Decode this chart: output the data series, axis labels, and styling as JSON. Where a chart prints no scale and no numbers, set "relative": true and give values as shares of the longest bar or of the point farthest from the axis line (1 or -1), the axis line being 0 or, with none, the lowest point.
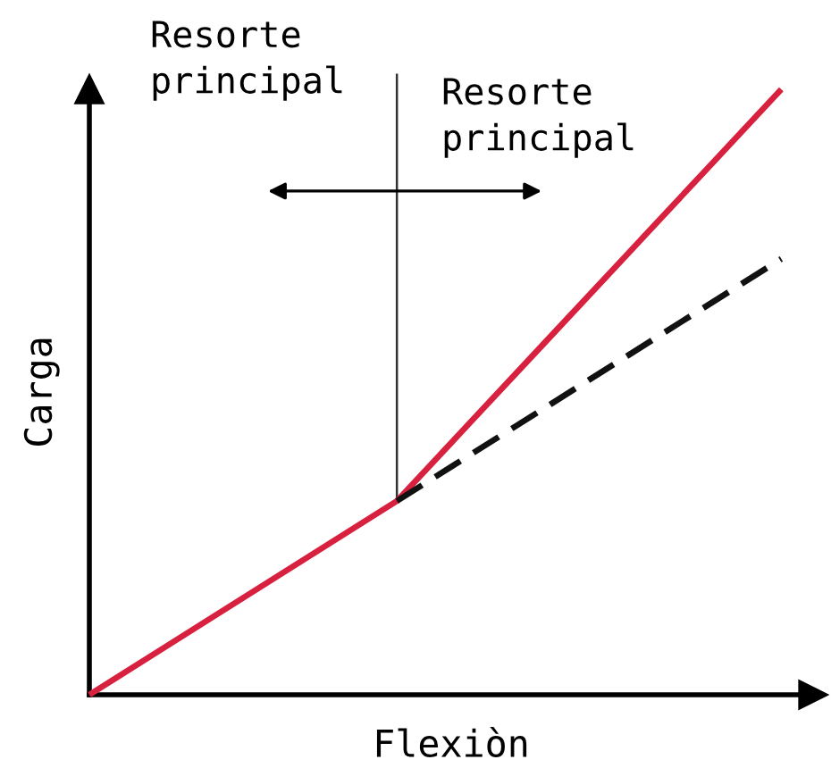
{
  "chart_data": {
    "type": "line",
    "relative": true,
    "xlabel": "Flexiòn",
    "ylabel": "Carga",
    "annotations": [
      "Resorte\nprincipal",
      "Resorte\nprincipal"
    ],
    "categories": [
      null,
      null,
      null,
      null,
      null,
      null,
      null,
      null,
      null,
      null
    ],
    "series": [
      {
        "color": "#d8203f",
        "line_style": "solid",
        "values": [
          0,
          0.08,
          0.16,
          0.24,
          0.32,
          0.456,
          0.592,
          0.728,
          0.864,
          1.0
        ]
      },
      {
        "color": "#111111",
        "line_style": "dashed",
        "values": [
          null,
          null,
          null,
          null,
          0.32,
          0.4,
          0.48,
          0.56,
          0.64,
          0.72
        ]
      }
    ]
  }
}
